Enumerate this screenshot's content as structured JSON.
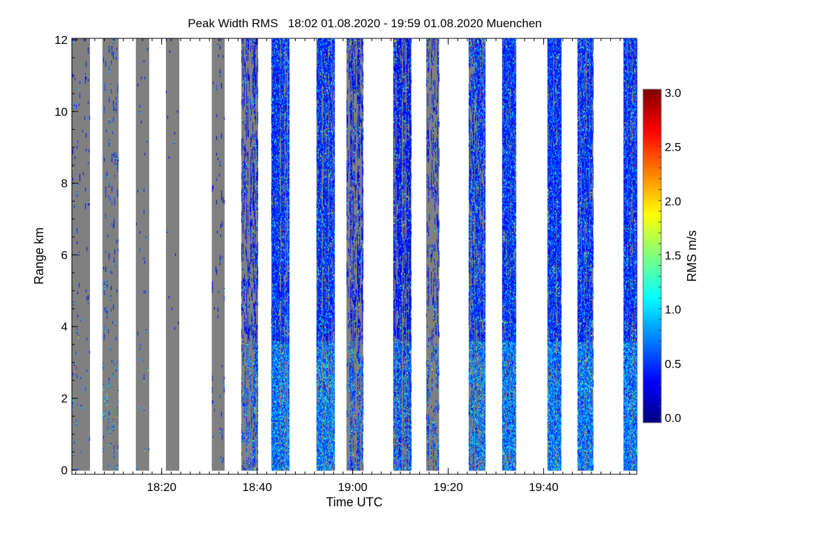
{
  "chart_data": {
    "type": "heatmap",
    "title": "Peak Width RMS   18:02 01.08.2020 - 19:59 01.08.2020 Muenchen",
    "xlabel": "Time UTC",
    "ylabel": "Range km",
    "x_units": "minutes after 18:00 UTC",
    "xlim": [
      1.2,
      119.5
    ],
    "ylim": [
      -0.12,
      12.04
    ],
    "x_ticks": [
      {
        "value": 20,
        "label": "18:20"
      },
      {
        "value": 40,
        "label": "18:40"
      },
      {
        "value": 60,
        "label": "19:00"
      },
      {
        "value": 80,
        "label": "19:20"
      },
      {
        "value": 100,
        "label": "19:40"
      }
    ],
    "x_minor_tick_step": 2,
    "y_ticks": [
      {
        "value": 0,
        "label": "0"
      },
      {
        "value": 2,
        "label": "2"
      },
      {
        "value": 4,
        "label": "4"
      },
      {
        "value": 6,
        "label": "6"
      },
      {
        "value": 8,
        "label": "8"
      },
      {
        "value": 10,
        "label": "10"
      },
      {
        "value": 12,
        "label": "12"
      }
    ],
    "y_minor_tick_step": 0.5,
    "colorbar": {
      "label": "RMS m/s",
      "range": [
        0.0,
        3.0
      ],
      "ticks": [
        {
          "value": 0.0,
          "label": "0.0"
        },
        {
          "value": 0.5,
          "label": "0.5"
        },
        {
          "value": 1.0,
          "label": "1.0"
        },
        {
          "value": 1.5,
          "label": "1.5"
        },
        {
          "value": 2.0,
          "label": "2.0"
        },
        {
          "value": 2.5,
          "label": "2.5"
        },
        {
          "value": 3.0,
          "label": "3.0"
        }
      ],
      "colormap": [
        "#000080",
        "#0000ff",
        "#0080ff",
        "#00ffff",
        "#80ff80",
        "#ffff00",
        "#ff8000",
        "#ff0000",
        "#800000"
      ]
    },
    "no_data_color": "#808080",
    "range_km": [
      0,
      12
    ],
    "segments": [
      {
        "start": 1.2,
        "end": 5.0,
        "valid_fraction": 0.1,
        "mean_rms": 0.4
      },
      {
        "start": 7.6,
        "end": 11.0,
        "valid_fraction": 0.15,
        "mean_rms": 0.5
      },
      {
        "start": 14.6,
        "end": 17.4,
        "valid_fraction": 0.05,
        "mean_rms": 0.4
      },
      {
        "start": 20.9,
        "end": 23.7,
        "valid_fraction": 0.03,
        "mean_rms": 0.3
      },
      {
        "start": 30.5,
        "end": 33.2,
        "valid_fraction": 0.1,
        "mean_rms": 0.3
      },
      {
        "start": 36.7,
        "end": 40.2,
        "valid_fraction": 0.4,
        "mean_rms": 0.4
      },
      {
        "start": 42.95,
        "end": 46.75,
        "valid_fraction": 0.9,
        "mean_rms": 0.5
      },
      {
        "start": 52.4,
        "end": 56.2,
        "valid_fraction": 0.85,
        "mean_rms": 0.5
      },
      {
        "start": 58.7,
        "end": 62.2,
        "valid_fraction": 0.5,
        "mean_rms": 0.4
      },
      {
        "start": 68.5,
        "end": 72.3,
        "valid_fraction": 0.7,
        "mean_rms": 0.4
      },
      {
        "start": 75.4,
        "end": 78.1,
        "valid_fraction": 0.3,
        "mean_rms": 0.4
      },
      {
        "start": 84.3,
        "end": 87.8,
        "valid_fraction": 0.6,
        "mean_rms": 0.5
      },
      {
        "start": 91.3,
        "end": 94.2,
        "valid_fraction": 0.98,
        "mean_rms": 0.5
      },
      {
        "start": 100.8,
        "end": 103.7,
        "valid_fraction": 0.98,
        "mean_rms": 0.5
      },
      {
        "start": 107.1,
        "end": 110.4,
        "valid_fraction": 0.95,
        "mean_rms": 0.5
      },
      {
        "start": 116.7,
        "end": 119.5,
        "valid_fraction": 0.99,
        "mean_rms": 0.5
      }
    ]
  }
}
